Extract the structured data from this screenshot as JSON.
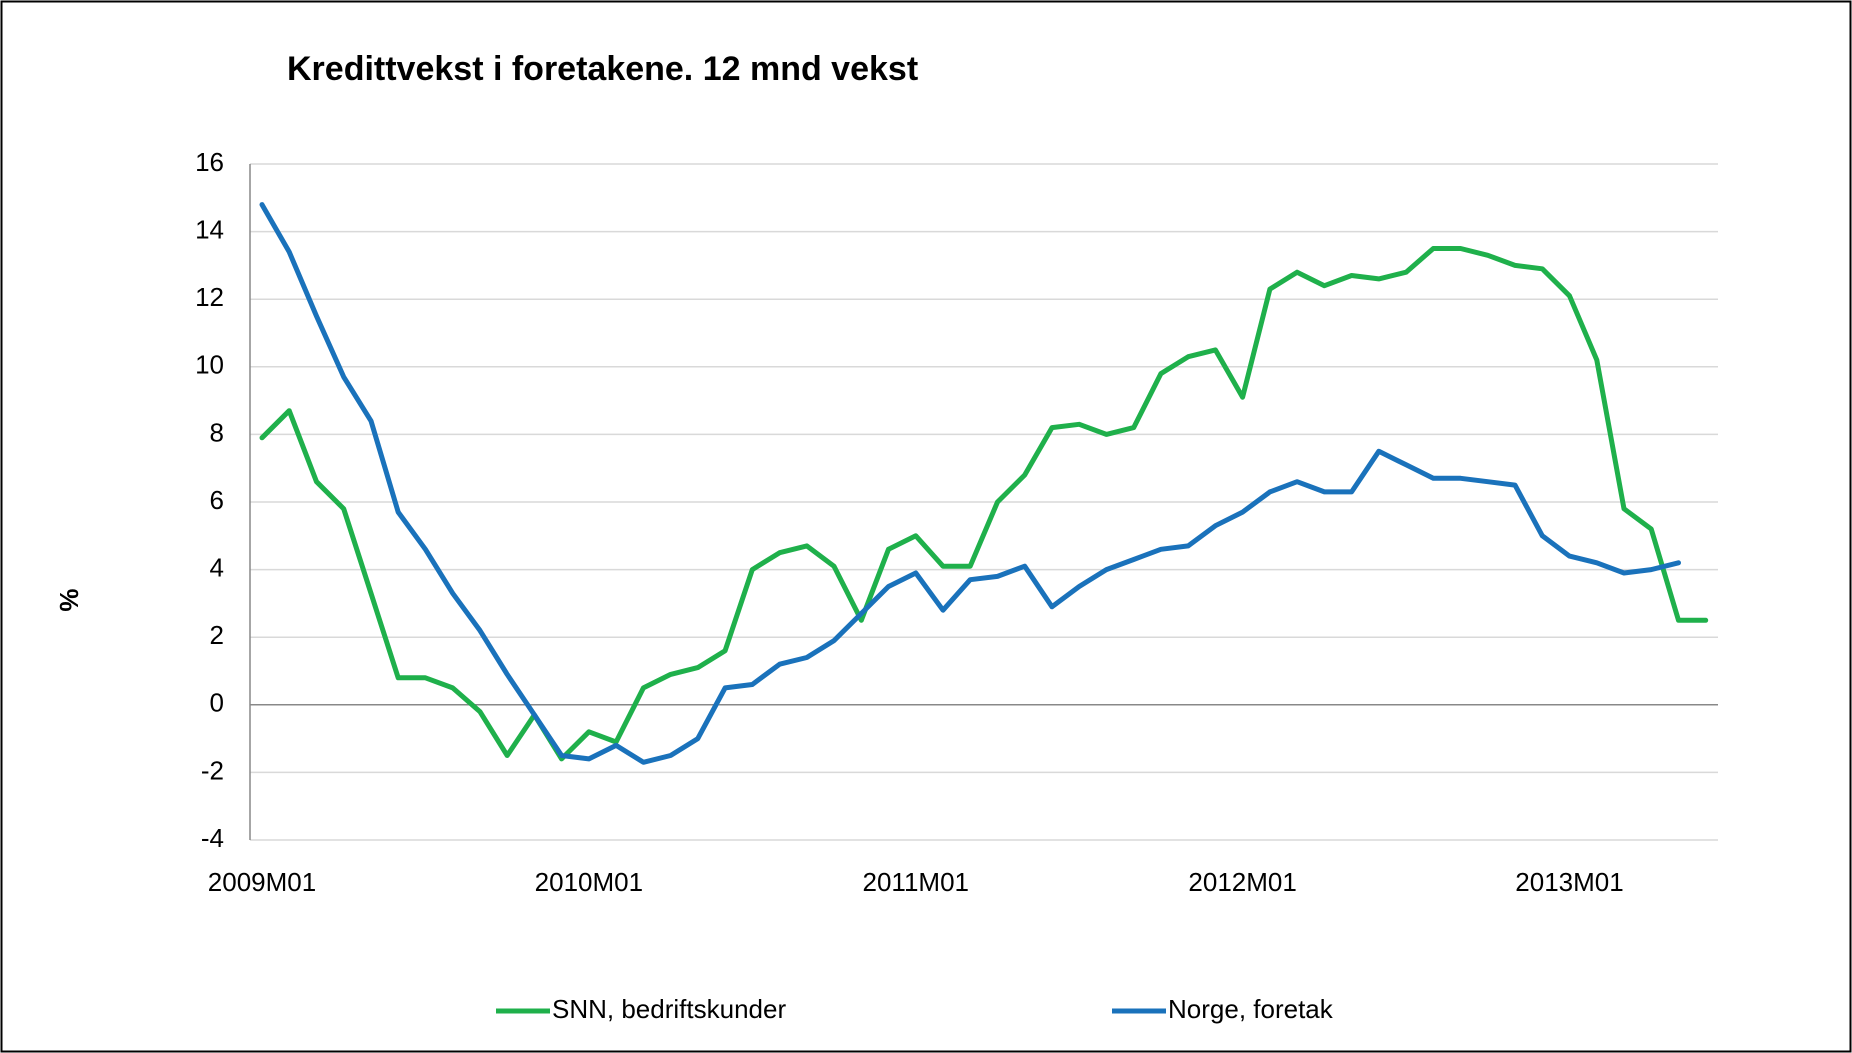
{
  "chart_data": {
    "type": "line",
    "title": "Kredittvekst i foretakene. 12 mnd vekst",
    "y_label": "%",
    "categories": [
      "2009M01",
      null,
      null,
      null,
      null,
      null,
      null,
      null,
      null,
      null,
      null,
      null,
      "2010M01",
      null,
      null,
      null,
      null,
      null,
      null,
      null,
      null,
      null,
      null,
      null,
      "2011M01",
      null,
      null,
      null,
      null,
      null,
      null,
      null,
      null,
      null,
      null,
      null,
      "2012M01",
      null,
      null,
      null,
      null,
      null,
      null,
      null,
      null,
      null,
      null,
      null,
      "2013M01",
      null,
      null,
      null,
      null,
      null
    ],
    "series": [
      {
        "name": "SNN, bedriftskunder",
        "color": "#1fb04b",
        "values": [
          7.9,
          8.7,
          6.6,
          5.8,
          3.3,
          0.8,
          0.8,
          0.5,
          -0.2,
          -1.5,
          -0.3,
          -1.6,
          -0.8,
          -1.1,
          0.5,
          0.9,
          1.1,
          1.6,
          4.0,
          4.5,
          4.7,
          4.1,
          2.5,
          4.6,
          5.0,
          4.1,
          4.1,
          6.0,
          6.8,
          8.2,
          8.3,
          8.0,
          8.2,
          9.8,
          10.3,
          10.5,
          9.1,
          12.3,
          12.8,
          12.4,
          12.7,
          12.6,
          12.8,
          13.5,
          13.5,
          13.3,
          13.0,
          12.9,
          12.1,
          10.2,
          5.8,
          5.2,
          2.5,
          2.5
        ]
      },
      {
        "name": "Norge, foretak",
        "color": "#1a72bb",
        "values": [
          14.8,
          13.4,
          11.5,
          9.7,
          8.4,
          5.7,
          4.6,
          3.3,
          2.2,
          0.9,
          -0.3,
          -1.5,
          -1.6,
          -1.2,
          -1.7,
          -1.5,
          -1.0,
          0.5,
          0.6,
          1.2,
          1.4,
          1.9,
          2.7,
          3.5,
          3.9,
          2.8,
          3.7,
          3.8,
          4.1,
          2.9,
          3.5,
          4.0,
          4.3,
          4.6,
          4.7,
          5.3,
          5.7,
          6.3,
          6.6,
          6.3,
          6.3,
          7.5,
          7.1,
          6.7,
          6.7,
          6.6,
          6.5,
          5.0,
          4.4,
          4.2,
          3.9,
          4.0,
          4.2,
          null
        ]
      }
    ],
    "ylim": [
      -4,
      16
    ],
    "yticks": [
      -4,
      -2,
      0,
      2,
      4,
      6,
      8,
      10,
      12,
      14,
      16
    ],
    "grid": true,
    "legend": "bottom"
  }
}
